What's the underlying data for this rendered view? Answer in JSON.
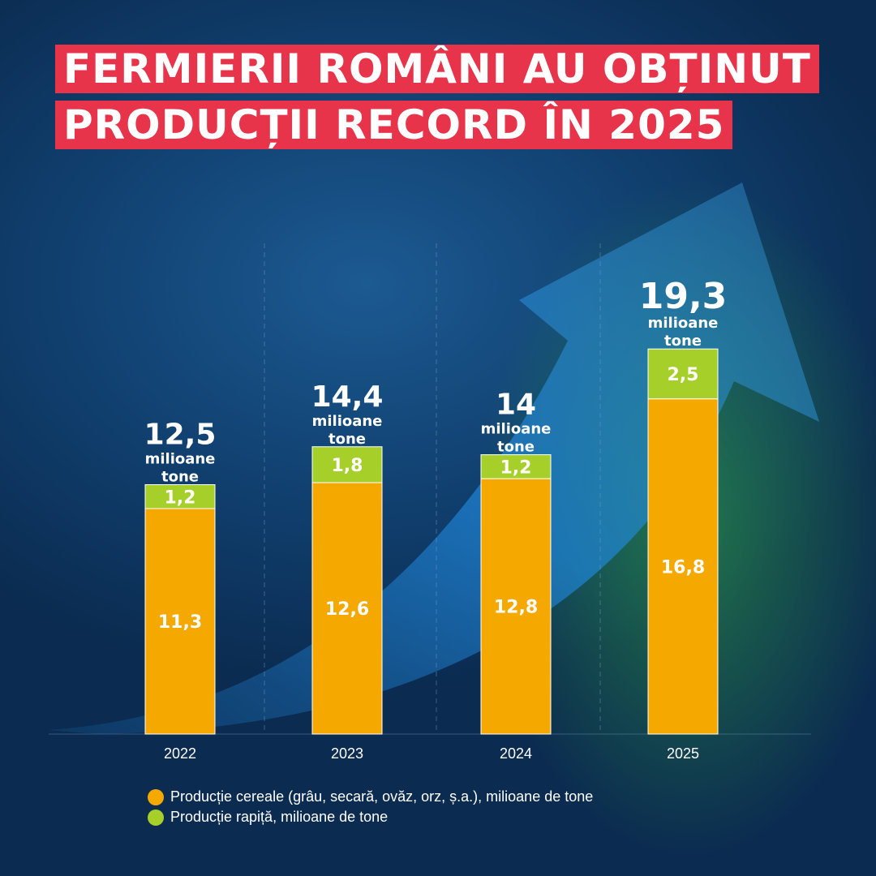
{
  "title": {
    "line1": "FERMIERII ROMÂNI AU OBȚINUT",
    "line2": "PRODUCȚII RECORD ÎN 2025"
  },
  "chart_data": {
    "type": "bar",
    "stacked": true,
    "categories": [
      "2022",
      "2023",
      "2024",
      "2025"
    ],
    "series": [
      {
        "name": "Producție cereale (grâu, secară, ovăz, orz, ș.a.), milioane de tone",
        "color": "#f5a800",
        "values": [
          11.3,
          12.6,
          12.8,
          16.8
        ],
        "labels": [
          "11,3",
          "12,6",
          "12,8",
          "16,8"
        ]
      },
      {
        "name": "Producție rapiță, milioane de tone",
        "color": "#a6cf2a",
        "values": [
          1.2,
          1.8,
          1.2,
          2.5
        ],
        "labels": [
          "1,2",
          "1,8",
          "1,2",
          "2,5"
        ]
      }
    ],
    "totals": [
      "12,5",
      "14,4",
      "14",
      "19,3"
    ],
    "total_unit_line1": "milioane",
    "total_unit_line2": "tone",
    "legend_position": "bottom-left",
    "grid": false
  }
}
